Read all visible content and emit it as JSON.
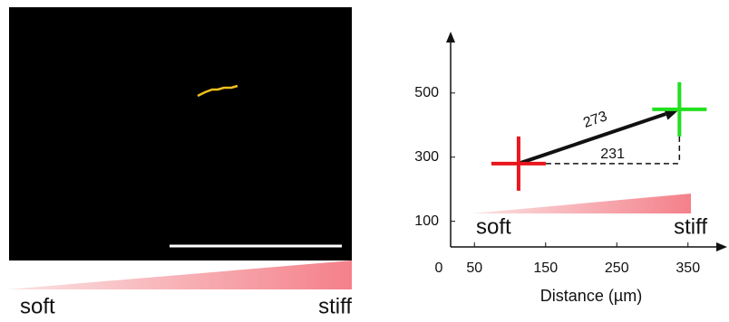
{
  "image_panel": {
    "gradient_labels": [
      "soft",
      "stiff"
    ]
  },
  "chart_data": {
    "type": "scatter",
    "xlabel": "Distance (µm)",
    "xlim": [
      0,
      400
    ],
    "xticks": [
      0,
      50,
      150,
      250,
      350
    ],
    "ylim": [
      20,
      680
    ],
    "yticks": [
      100,
      300,
      500
    ],
    "points": [
      {
        "x": 112,
        "y": 280,
        "color": "#e8161b"
      },
      {
        "x": 338,
        "y": 449,
        "color": "#22e01f"
      }
    ],
    "arrow_label": "273",
    "baseline_label": "231",
    "gradient_labels": [
      "soft",
      "stiff"
    ]
  }
}
